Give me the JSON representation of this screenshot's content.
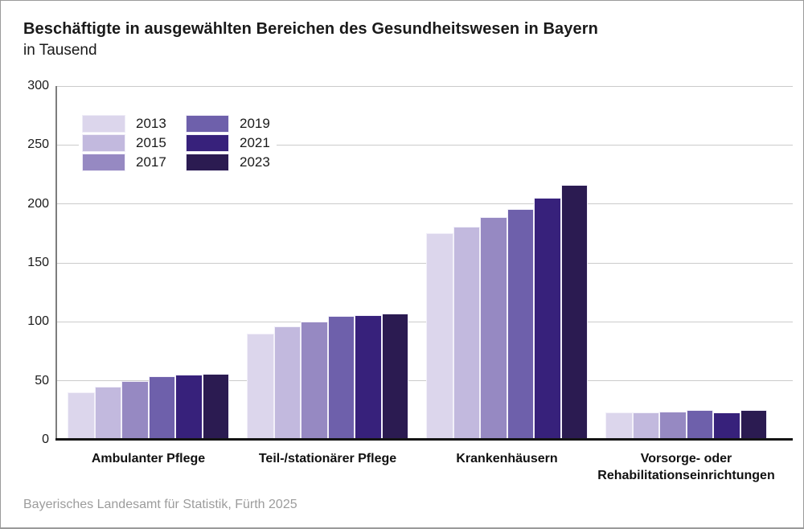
{
  "header": {
    "title": "Beschäftigte in ausgewählten Bereichen des Gesundheitswesen in Bayern",
    "subtitle": "in Tausend"
  },
  "chart_data": {
    "type": "bar",
    "title": "Beschäftigte in ausgewählten Bereichen des Gesundheitswesen in Bayern",
    "subtitle": "in Tausend",
    "categories": [
      "Ambulanter Pflege",
      "Teil-/stationärer Pflege",
      "Krankenhäusern",
      "Vorsorge- oder Rehabilitationseinrichtungen"
    ],
    "categories_display": [
      [
        "Ambulanter Pflege"
      ],
      [
        "Teil-/stationärer Pflege"
      ],
      [
        "Krankenhäusern"
      ],
      [
        "Vorsorge- oder",
        "Rehabilitationseinrichtungen"
      ]
    ],
    "series": [
      {
        "name": "2013",
        "color": "#dcd6ec",
        "values": [
          40,
          90,
          175,
          23
        ]
      },
      {
        "name": "2015",
        "color": "#c2b9de",
        "values": [
          45,
          96,
          181,
          23
        ]
      },
      {
        "name": "2017",
        "color": "#9689c2",
        "values": [
          50,
          100,
          189,
          24
        ]
      },
      {
        "name": "2019",
        "color": "#6e60ab",
        "values": [
          54,
          105,
          196,
          25
        ]
      },
      {
        "name": "2021",
        "color": "#37217b",
        "values": [
          55,
          106,
          205,
          23
        ]
      },
      {
        "name": "2023",
        "color": "#2b1b51",
        "values": [
          56,
          107,
          216,
          25
        ]
      }
    ],
    "ylim": [
      0,
      300
    ],
    "yticks": [
      0,
      50,
      100,
      150,
      200,
      250,
      300
    ],
    "grid": true,
    "legend_position": "upper-left"
  },
  "footer": {
    "source": "Bayerisches Landesamt für Statistik, Fürth 2025"
  }
}
